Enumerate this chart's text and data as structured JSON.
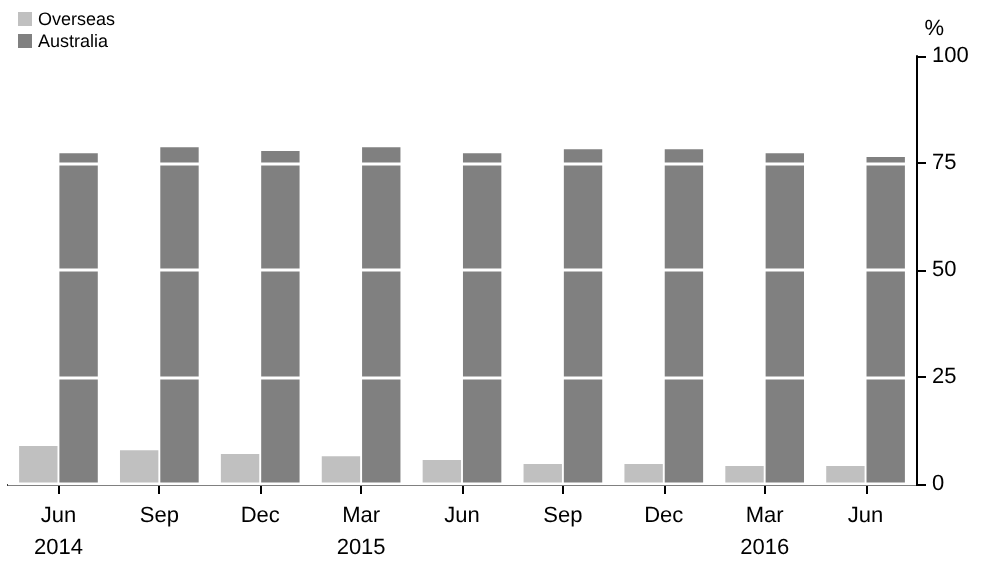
{
  "chart_data": {
    "type": "bar",
    "ylabel": "%",
    "categories": [
      "Jun\n2014",
      "Sep",
      "Dec",
      "Mar\n2015",
      "Jun",
      "Sep",
      "Dec",
      "Mar\n2016",
      "Jun"
    ],
    "series": [
      {
        "name": "Overseas",
        "color": "#c0c0c0",
        "values": [
          8.9,
          7.9,
          7.0,
          6.5,
          5.6,
          4.7,
          4.7,
          4.2,
          4.2
        ]
      },
      {
        "name": "Australia",
        "color": "#808080",
        "values": [
          77.3,
          78.7,
          77.8,
          78.7,
          77.3,
          78.2,
          78.2,
          77.3,
          76.4
        ]
      }
    ],
    "ylim": [
      0,
      100
    ],
    "yticks": [
      0,
      25,
      50,
      75,
      100
    ],
    "grid": "y",
    "legend": "top left"
  }
}
